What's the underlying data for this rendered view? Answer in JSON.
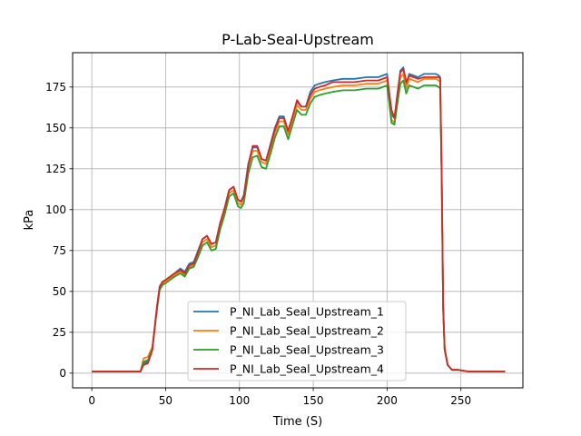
{
  "chart_data": {
    "type": "line",
    "title": "P-Lab-Seal-Upstream",
    "xlabel": "Time (S)",
    "ylabel": "kPa",
    "xlim": [
      -13,
      292
    ],
    "ylim": [
      -9,
      196
    ],
    "xticks": [
      0,
      50,
      100,
      150,
      200,
      250
    ],
    "yticks": [
      0,
      25,
      50,
      75,
      100,
      125,
      150,
      175
    ],
    "grid": true,
    "legend_position": "lower-center",
    "series": [
      {
        "name": "P_NI_Lab_Seal_Upstream_1",
        "color": "#1f77b4",
        "x": [
          0,
          10,
          20,
          30,
          33,
          35,
          38,
          41,
          44,
          46,
          48,
          50,
          53,
          56,
          60,
          63,
          66,
          69,
          72,
          75,
          78,
          81,
          84,
          87,
          90,
          93,
          96,
          99,
          101,
          103,
          106,
          109,
          112,
          115,
          118,
          121,
          124,
          127,
          130,
          133,
          136,
          139,
          142,
          145,
          148,
          151,
          154,
          158,
          163,
          170,
          178,
          186,
          194,
          200,
          203,
          205,
          207,
          209,
          211,
          213,
          215,
          218,
          221,
          225,
          229,
          233,
          235,
          236,
          237,
          238,
          239,
          241,
          244,
          248,
          255,
          265,
          280
        ],
        "y": [
          1,
          1,
          1,
          1,
          1,
          6,
          7,
          15,
          40,
          53,
          56,
          57,
          59,
          61,
          64,
          62,
          67,
          68,
          75,
          82,
          84,
          79,
          80,
          92,
          101,
          112,
          114,
          106,
          105,
          109,
          128,
          138,
          138,
          131,
          130,
          140,
          150,
          157,
          157,
          148,
          157,
          166,
          163,
          163,
          172,
          176,
          177,
          178,
          179,
          180,
          180,
          181,
          181,
          183,
          158,
          156,
          170,
          185,
          187,
          177,
          183,
          182,
          181,
          183,
          183,
          183,
          182,
          181,
          120,
          40,
          15,
          5,
          2,
          2,
          1,
          1,
          1
        ]
      },
      {
        "name": "P_NI_Lab_Seal_Upstream_2",
        "color": "#ff7f0e",
        "x": [
          0,
          10,
          20,
          30,
          33,
          35,
          38,
          41,
          44,
          46,
          48,
          50,
          53,
          56,
          60,
          63,
          66,
          69,
          72,
          75,
          78,
          81,
          84,
          87,
          90,
          93,
          96,
          99,
          101,
          103,
          106,
          109,
          112,
          115,
          118,
          121,
          124,
          127,
          130,
          133,
          136,
          139,
          142,
          145,
          148,
          151,
          154,
          158,
          163,
          170,
          178,
          186,
          194,
          200,
          203,
          205,
          207,
          209,
          211,
          213,
          215,
          218,
          221,
          225,
          229,
          233,
          235,
          236,
          237,
          238,
          239,
          241,
          244,
          248,
          255,
          265,
          280
        ],
        "y": [
          1,
          1,
          1,
          1,
          1,
          9,
          10,
          16,
          39,
          52,
          55,
          56,
          58,
          60,
          62,
          60,
          65,
          66,
          72,
          80,
          82,
          77,
          78,
          90,
          99,
          110,
          112,
          104,
          103,
          107,
          126,
          136,
          136,
          129,
          128,
          137,
          147,
          154,
          154,
          146,
          155,
          164,
          161,
          161,
          168,
          172,
          173,
          174,
          175,
          176,
          176,
          177,
          177,
          179,
          155,
          153,
          167,
          181,
          183,
          174,
          180,
          179,
          178,
          180,
          180,
          180,
          179,
          178,
          118,
          39,
          15,
          5,
          2,
          2,
          1,
          1,
          1
        ]
      },
      {
        "name": "P_NI_Lab_Seal_Upstream_3",
        "color": "#2ca02c",
        "x": [
          0,
          10,
          20,
          30,
          33,
          35,
          38,
          41,
          44,
          46,
          48,
          50,
          53,
          56,
          60,
          63,
          66,
          69,
          72,
          75,
          78,
          81,
          84,
          87,
          90,
          93,
          96,
          99,
          101,
          103,
          106,
          109,
          112,
          115,
          118,
          121,
          124,
          127,
          130,
          133,
          136,
          139,
          142,
          145,
          148,
          151,
          154,
          158,
          163,
          170,
          178,
          186,
          194,
          200,
          203,
          205,
          207,
          209,
          211,
          213,
          215,
          218,
          221,
          225,
          229,
          233,
          235,
          236,
          237,
          238,
          239,
          241,
          244,
          248,
          255,
          265,
          280
        ],
        "y": [
          1,
          1,
          1,
          1,
          1,
          7,
          8,
          15,
          38,
          51,
          54,
          55,
          57,
          59,
          61,
          59,
          64,
          65,
          71,
          78,
          80,
          75,
          76,
          88,
          97,
          108,
          110,
          102,
          101,
          104,
          122,
          132,
          133,
          126,
          125,
          134,
          144,
          151,
          151,
          143,
          152,
          161,
          158,
          158,
          165,
          169,
          170,
          171,
          172,
          173,
          173,
          174,
          174,
          176,
          153,
          152,
          165,
          177,
          179,
          171,
          176,
          175,
          174,
          176,
          176,
          176,
          175,
          174,
          116,
          38,
          14,
          5,
          2,
          2,
          1,
          1,
          1
        ]
      },
      {
        "name": "P_NI_Lab_Seal_Upstream_4",
        "color": "#d62728",
        "x": [
          0,
          10,
          20,
          30,
          33,
          35,
          38,
          41,
          44,
          46,
          48,
          50,
          53,
          56,
          60,
          63,
          66,
          69,
          72,
          75,
          78,
          81,
          84,
          87,
          90,
          93,
          96,
          99,
          101,
          103,
          106,
          109,
          112,
          115,
          118,
          121,
          124,
          127,
          130,
          133,
          136,
          139,
          142,
          145,
          148,
          151,
          154,
          158,
          163,
          170,
          178,
          186,
          194,
          200,
          203,
          205,
          207,
          209,
          211,
          213,
          215,
          218,
          221,
          225,
          229,
          233,
          235,
          236,
          237,
          238,
          239,
          241,
          244,
          248,
          255,
          265,
          280
        ],
        "y": [
          1,
          1,
          1,
          1,
          1,
          5,
          6,
          14,
          39,
          53,
          56,
          57,
          59,
          61,
          63,
          61,
          66,
          67,
          74,
          82,
          84,
          79,
          80,
          92,
          101,
          112,
          114,
          106,
          105,
          108,
          127,
          139,
          139,
          131,
          130,
          139,
          149,
          156,
          156,
          148,
          157,
          167,
          163,
          163,
          170,
          174,
          175,
          176,
          178,
          178,
          178,
          179,
          179,
          181,
          161,
          156,
          171,
          184,
          186,
          178,
          182,
          181,
          180,
          181,
          181,
          181,
          181,
          180,
          119,
          40,
          15,
          5,
          2,
          2,
          1,
          1,
          1
        ]
      }
    ]
  }
}
